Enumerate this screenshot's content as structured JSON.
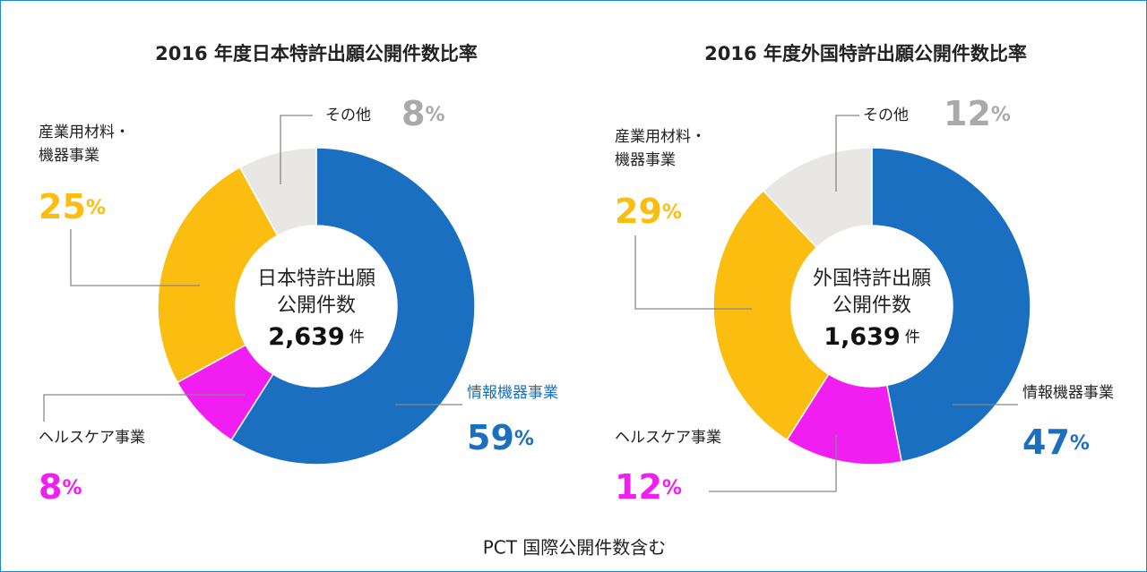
{
  "chart_data": [
    {
      "type": "donut",
      "title": "2016 年度日本特許出願公開件数比率",
      "categories": [
        "情報機器事業",
        "ヘルスケア事業",
        "産業用材料・\n機器事業",
        "その他"
      ],
      "values": [
        59,
        8,
        25,
        8
      ],
      "value_labels": [
        "59%",
        "8%",
        "25%",
        "8%"
      ],
      "colors": [
        "#1a6fc0",
        "#f01ef0",
        "#fbbd10",
        "#e9e7e4"
      ],
      "label_colors": [
        "#1a6fc0",
        "#f01ef0",
        "#fbbd10",
        "#aaaaaa"
      ],
      "center_label": [
        "日本特許出願",
        "公開件数"
      ],
      "total": "2,639",
      "unit": "件"
    },
    {
      "type": "donut",
      "title": "2016 年度外国特許出願公開件数比率",
      "categories": [
        "情報機器事業",
        "ヘルスケア事業",
        "産業用材料・\n機器事業",
        "その他"
      ],
      "values": [
        47,
        12,
        29,
        12
      ],
      "value_labels": [
        "47%",
        "12%",
        "29%",
        "12%"
      ],
      "colors": [
        "#1a6fc0",
        "#f01ef0",
        "#fbbd10",
        "#e9e7e4"
      ],
      "label_colors": [
        "#1a6fc0",
        "#f01ef0",
        "#fbbd10",
        "#aaaaaa"
      ],
      "center_label": [
        "外国特許出願",
        "公開件数"
      ],
      "total": "1,639",
      "unit": "件"
    }
  ],
  "footnote": "PCT 国際公開件数含む"
}
